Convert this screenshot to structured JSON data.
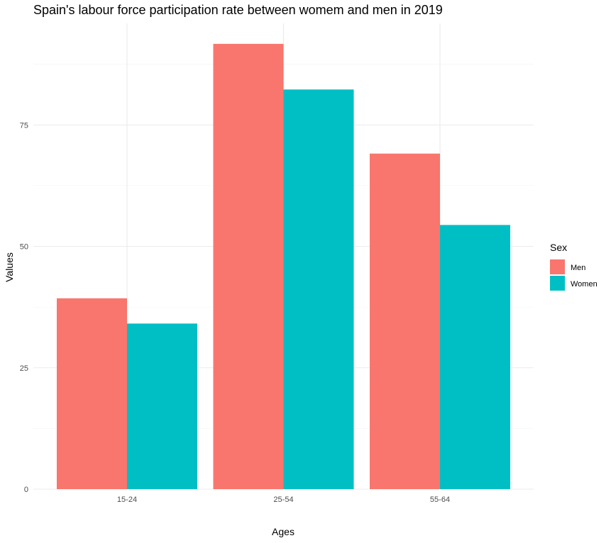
{
  "chart_data": {
    "type": "bar",
    "title": "Spain's labour force participation rate between womem and men in 2019",
    "xlabel": "Ages",
    "ylabel": "Values",
    "categories": [
      "15-24",
      "25-54",
      "55-64"
    ],
    "series": [
      {
        "name": "Men",
        "color": "#F8766D",
        "values": [
          39.3,
          91.7,
          69.1
        ]
      },
      {
        "name": "Women",
        "color": "#00BFC4",
        "values": [
          34.1,
          82.3,
          54.4
        ]
      }
    ],
    "ylim": [
      0,
      96
    ],
    "yticks": [
      0,
      25,
      50,
      75
    ],
    "grid": true,
    "legend": {
      "title": "Sex",
      "placement": "right"
    }
  }
}
